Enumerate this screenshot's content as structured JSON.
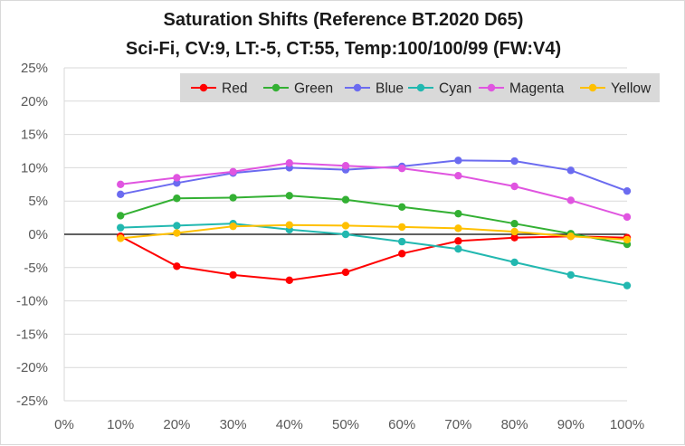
{
  "chart_data": {
    "type": "line",
    "title": "Saturation Shifts (Reference BT.2020 D65)",
    "subtitle": "Sci-Fi, CV:9, LT:-5, CT:55, Temp:100/100/99 (FW:V4)",
    "xlabel": "",
    "ylabel": "",
    "x": [
      10,
      20,
      30,
      40,
      50,
      60,
      70,
      80,
      90,
      100
    ],
    "x_tick_labels": [
      "0%",
      "10%",
      "20%",
      "30%",
      "40%",
      "50%",
      "60%",
      "70%",
      "80%",
      "90%",
      "100%"
    ],
    "xlim": [
      0,
      100
    ],
    "y_tick_labels": [
      "25%",
      "20%",
      "15%",
      "10%",
      "5%",
      "0%",
      "-5%",
      "-10%",
      "-15%",
      "-20%",
      "-25%"
    ],
    "ylim": [
      -25,
      25
    ],
    "grid": true,
    "legend_position": "top-right",
    "series": [
      {
        "name": "Red",
        "color": "#ff0000",
        "values": [
          -0.3,
          -4.8,
          -6.1,
          -6.9,
          -5.7,
          -2.9,
          -1.0,
          -0.5,
          -0.3,
          -0.5
        ]
      },
      {
        "name": "Green",
        "color": "#33b033",
        "values": [
          2.8,
          5.4,
          5.5,
          5.8,
          5.2,
          4.1,
          3.1,
          1.6,
          0.1,
          -1.5
        ]
      },
      {
        "name": "Blue",
        "color": "#6b6bf0",
        "values": [
          6.0,
          7.7,
          9.2,
          10.0,
          9.7,
          10.2,
          11.1,
          11.0,
          9.6,
          6.5
        ]
      },
      {
        "name": "Cyan",
        "color": "#22b8b0",
        "values": [
          1.0,
          1.3,
          1.6,
          0.7,
          0.0,
          -1.1,
          -2.2,
          -4.2,
          -6.1,
          -7.7
        ]
      },
      {
        "name": "Magenta",
        "color": "#e055e0",
        "values": [
          7.5,
          8.5,
          9.4,
          10.7,
          10.3,
          9.9,
          8.8,
          7.2,
          5.1,
          2.6
        ]
      },
      {
        "name": "Yellow",
        "color": "#ffc000",
        "values": [
          -0.6,
          0.2,
          1.2,
          1.4,
          1.3,
          1.1,
          0.9,
          0.4,
          -0.3,
          -0.8
        ]
      }
    ]
  }
}
